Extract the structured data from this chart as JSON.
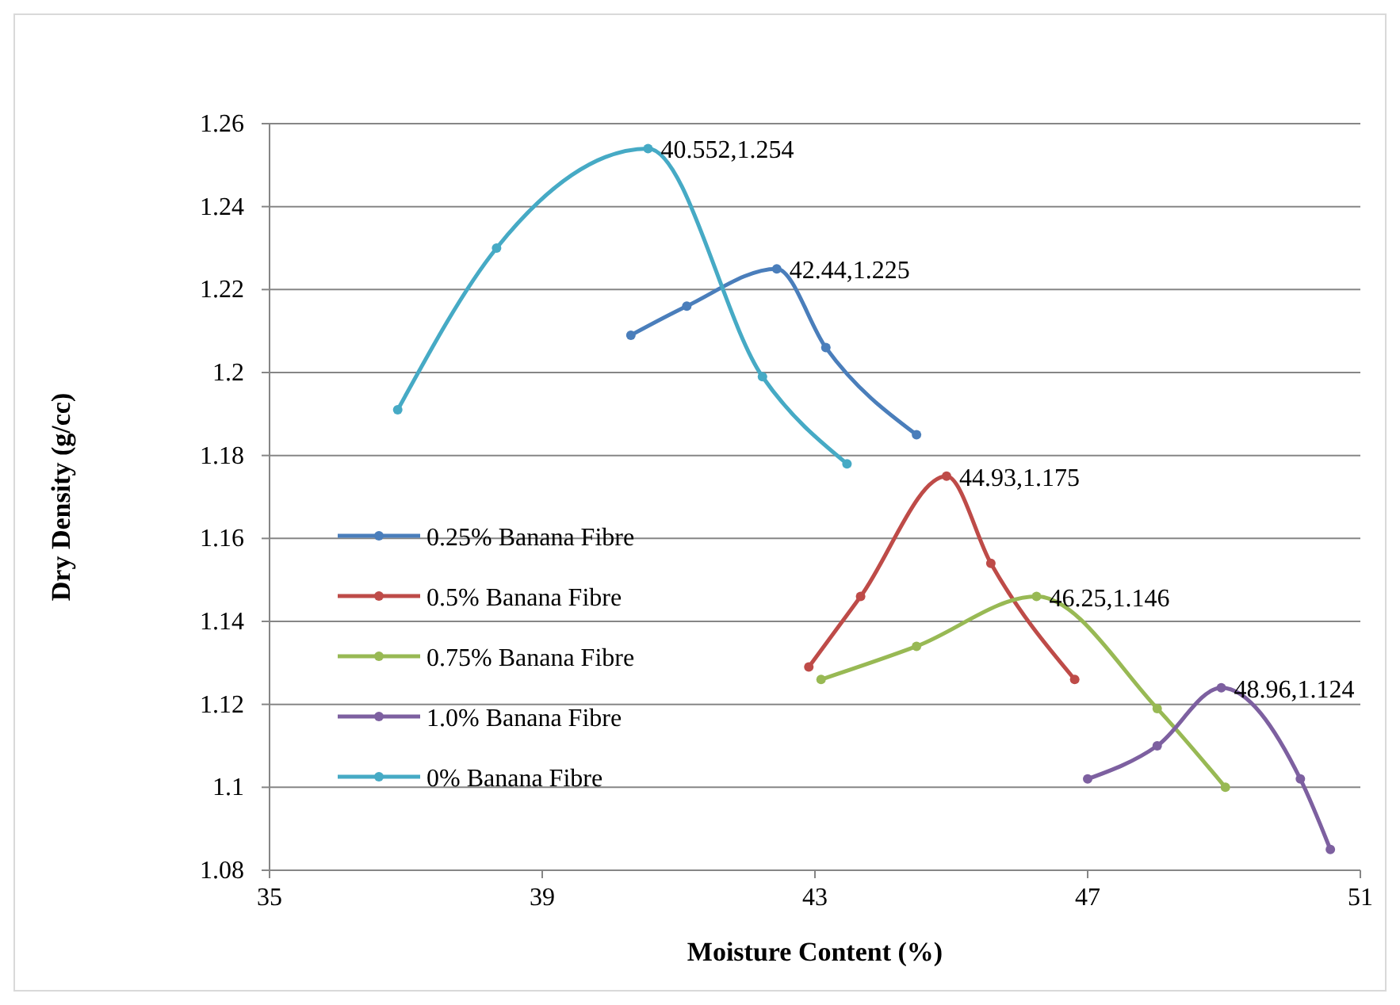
{
  "chart_data": {
    "type": "line",
    "xlabel": "Moisture Content (%)",
    "ylabel": "Dry Density (g/cc)",
    "xlim": [
      35,
      51
    ],
    "xticks": [
      35,
      39,
      43,
      47,
      51
    ],
    "ylim": [
      1.08,
      1.26
    ],
    "yticks": [
      1.08,
      1.1,
      1.12,
      1.14,
      1.16,
      1.18,
      1.2,
      1.22,
      1.24,
      1.26
    ],
    "grid": "y",
    "legend": "left",
    "marker": "circle",
    "line_style": "solid",
    "series": [
      {
        "name": "0.25% Banana Fibre",
        "color": "#4a7ebb",
        "x": [
          40.3,
          41.12,
          42.44,
          43.16,
          44.49
        ],
        "values": [
          1.209,
          1.216,
          1.225,
          1.206,
          1.185
        ]
      },
      {
        "name": "0.5% Banana Fibre",
        "color": "#be4b48",
        "x": [
          42.91,
          43.67,
          44.93,
          45.58,
          46.81
        ],
        "values": [
          1.129,
          1.146,
          1.175,
          1.154,
          1.126
        ]
      },
      {
        "name": "0.75% Banana Fibre",
        "color": "#98b954",
        "x": [
          43.09,
          44.49,
          46.25,
          48.02,
          49.02
        ],
        "values": [
          1.126,
          1.134,
          1.146,
          1.119,
          1.1
        ]
      },
      {
        "name": "1.0% Banana Fibre",
        "color": "#7d60a0",
        "x": [
          47.0,
          48.02,
          48.96,
          50.12,
          50.56
        ],
        "values": [
          1.102,
          1.11,
          1.124,
          1.102,
          1.085
        ]
      },
      {
        "name": "0% Banana Fibre",
        "color": "#46aac5",
        "x": [
          36.88,
          38.33,
          40.552,
          42.23,
          43.47
        ],
        "values": [
          1.191,
          1.23,
          1.254,
          1.199,
          1.178
        ]
      }
    ],
    "annotations": [
      {
        "text": "40.552,1.254",
        "x": 40.552,
        "y": 1.254
      },
      {
        "text": "42.44,1.225",
        "x": 42.44,
        "y": 1.225
      },
      {
        "text": "44.93,1.175",
        "x": 44.93,
        "y": 1.175
      },
      {
        "text": "46.25,1.146",
        "x": 46.25,
        "y": 1.146
      },
      {
        "text": "48.96,1.124",
        "x": 48.96,
        "y": 1.124
      }
    ]
  }
}
